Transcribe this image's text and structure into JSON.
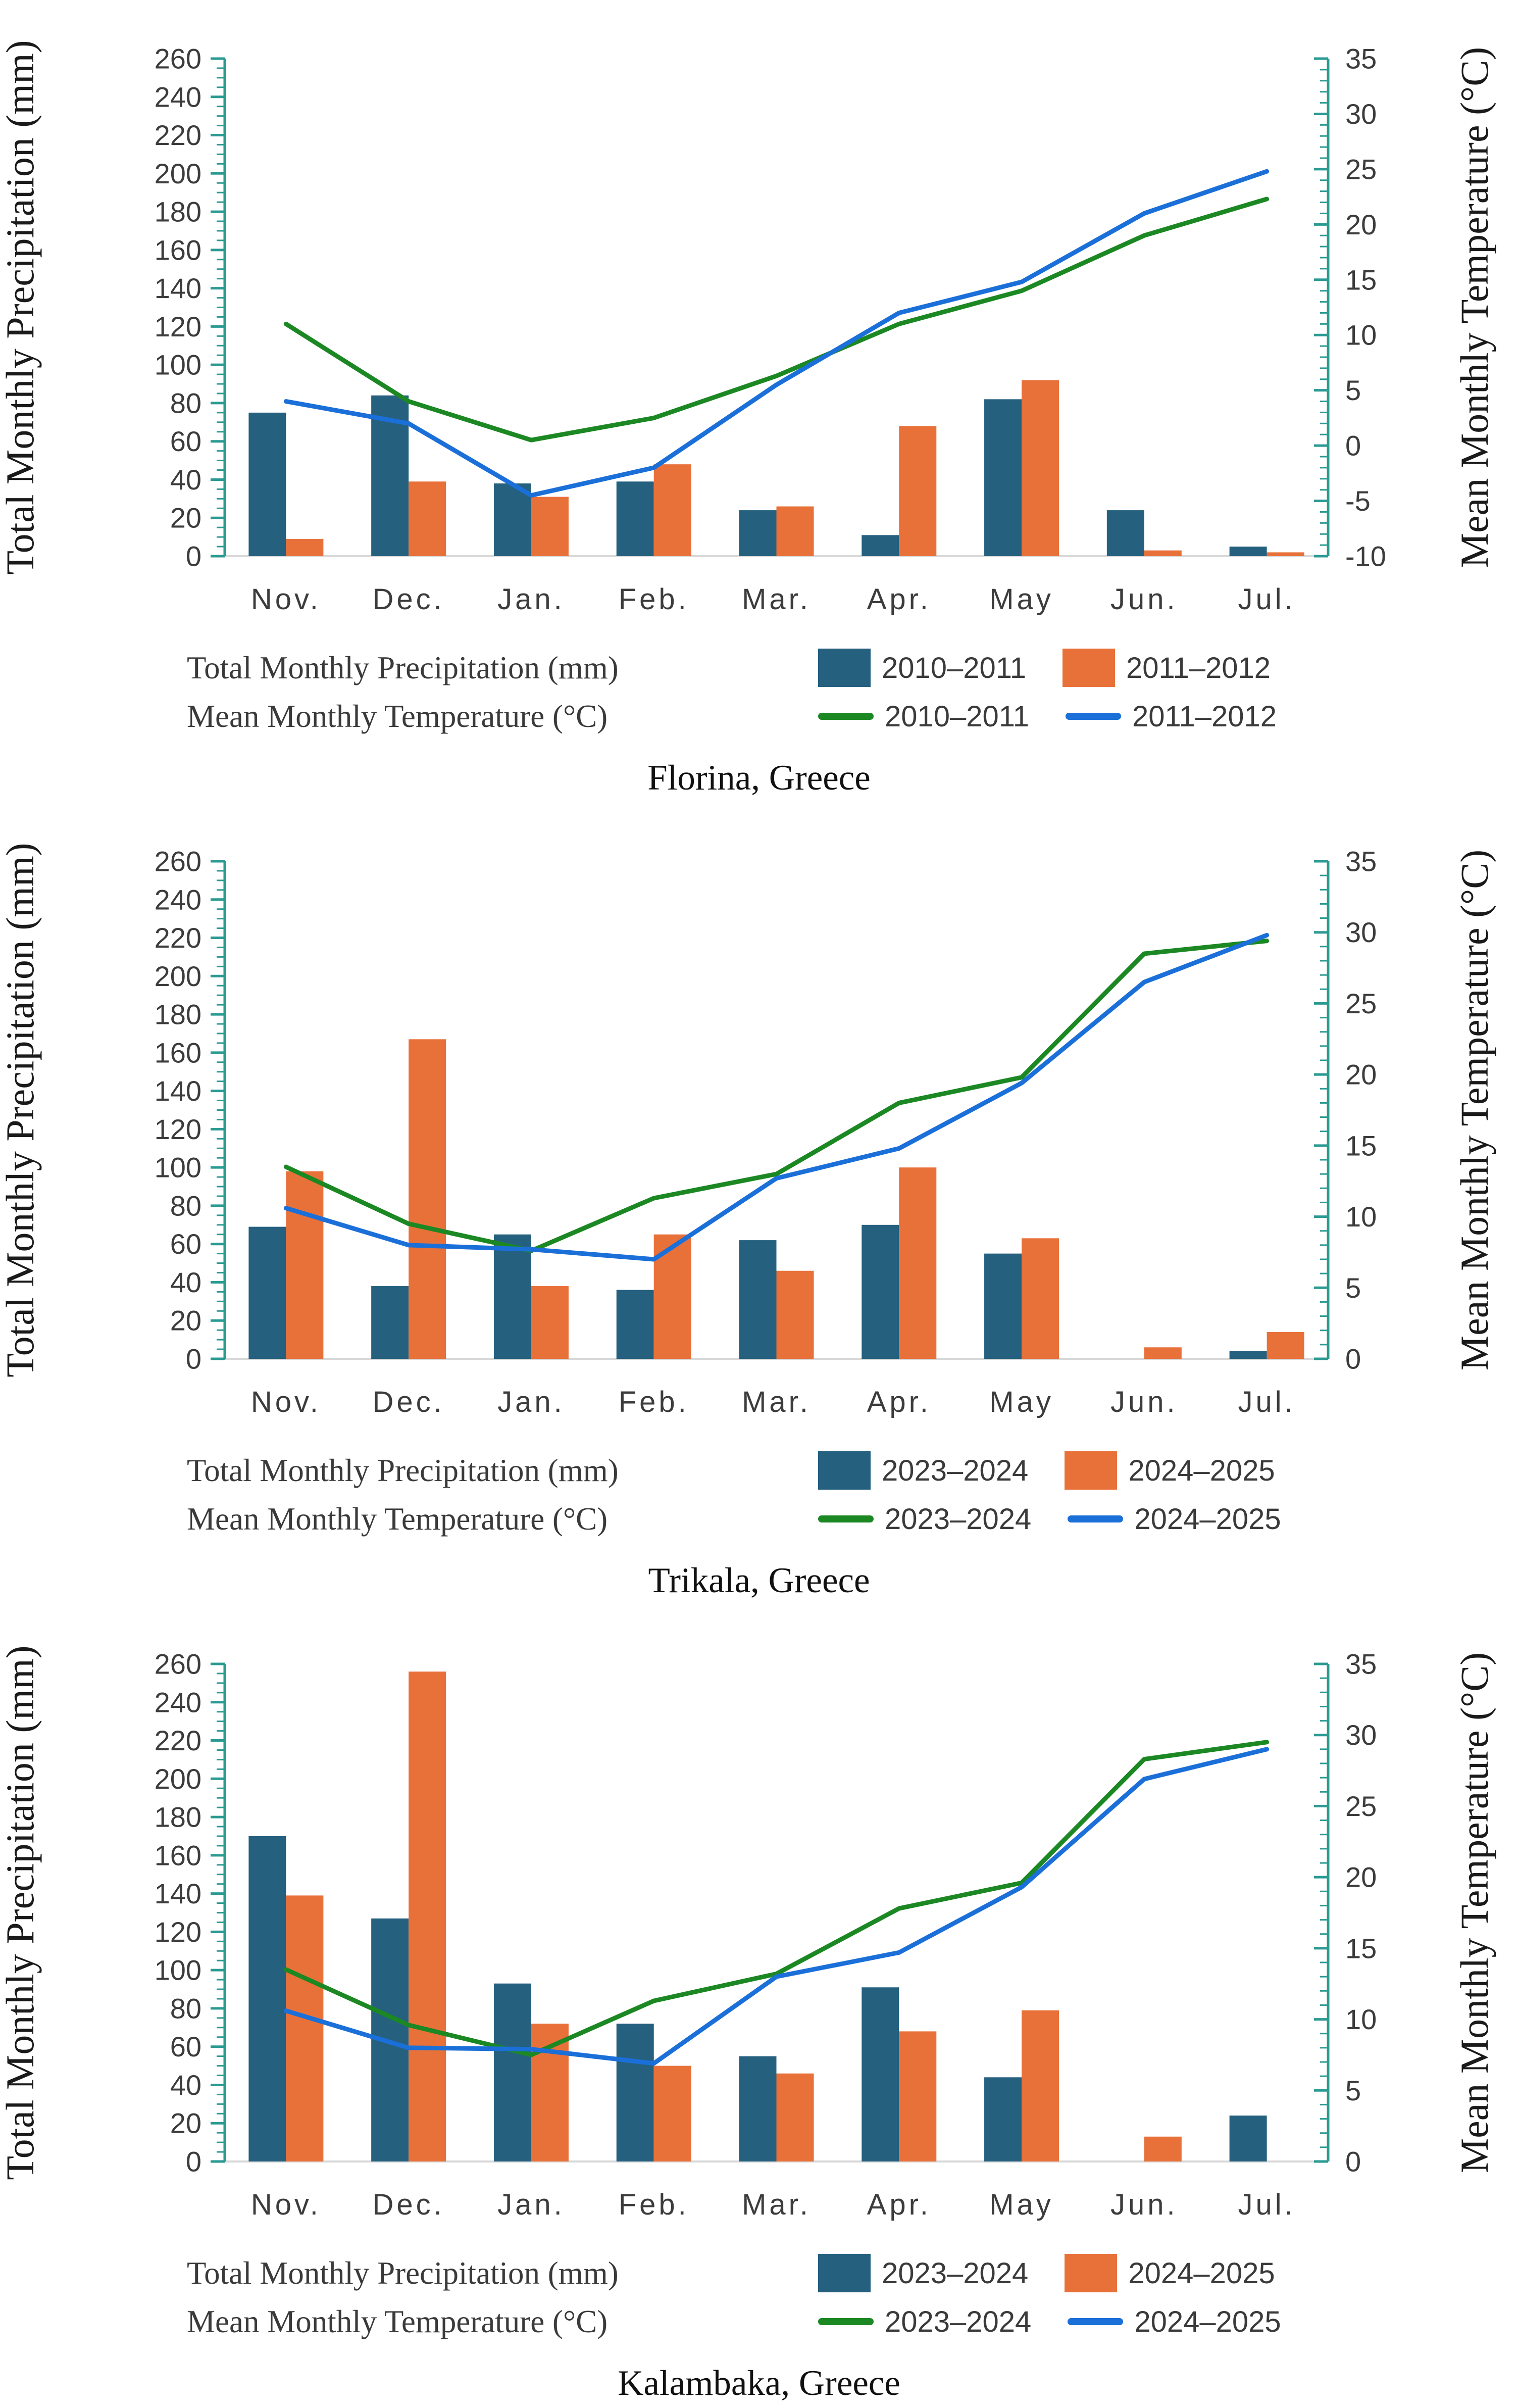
{
  "colors": {
    "bar_series1": "#25607F",
    "bar_series2": "#E8713A",
    "line_series1": "#1C8823",
    "line_series2": "#1B6FD8",
    "axis": "#2B9A92",
    "baseline": "#D8D8D8",
    "tick_text": "#3C3C3C"
  },
  "chart_data": [
    {
      "type": "bar+line",
      "title": "Florina, Greece",
      "categories": [
        "Nov.",
        "Dec.",
        "Jan.",
        "Feb.",
        "Mar.",
        "Apr.",
        "May",
        "Jun.",
        "Jul."
      ],
      "bar_axis": {
        "label": "Total Monthly Precipitation (mm)",
        "min": 0,
        "max": 260,
        "major_tick": 20,
        "minor_tick": 5
      },
      "line_axis": {
        "label": "Mean Monthly Temperature (°C)",
        "min": -10,
        "max": 35,
        "major_tick": 5,
        "minor_tick": 1
      },
      "legend": {
        "bar_group_label": "Total Monthly Precipitation  (mm)",
        "line_group_label": "Mean Monthly Temperature (°C)"
      },
      "bar_series": [
        {
          "name": "2010–2011",
          "values": [
            75,
            84,
            38,
            39,
            24,
            11,
            82,
            24,
            5
          ]
        },
        {
          "name": "2011–2012",
          "values": [
            9,
            39,
            31,
            48,
            26,
            68,
            92,
            3,
            2
          ]
        }
      ],
      "line_series": [
        {
          "name": "2010–2011",
          "values": [
            11,
            4,
            0.5,
            2.5,
            6.3,
            11,
            14,
            19,
            22.3
          ]
        },
        {
          "name": "2011–2012",
          "values": [
            4,
            2,
            -4.5,
            -2,
            5.5,
            12,
            14.8,
            21,
            24.8
          ]
        }
      ]
    },
    {
      "type": "bar+line",
      "title": "Trikala, Greece",
      "categories": [
        "Nov.",
        "Dec.",
        "Jan.",
        "Feb.",
        "Mar.",
        "Apr.",
        "May",
        "Jun.",
        "Jul."
      ],
      "bar_axis": {
        "label": "Total Monthly Precipitation (mm)",
        "min": 0,
        "max": 260,
        "major_tick": 20,
        "minor_tick": 5
      },
      "line_axis": {
        "label": "Mean Monthly Temperature (°C)",
        "min": 0,
        "max": 35,
        "major_tick": 5,
        "minor_tick": 1
      },
      "legend": {
        "bar_group_label": "Total Monthly Precipitation (mm)",
        "line_group_label": "Mean Monthly Temperature (°C)"
      },
      "bar_series": [
        {
          "name": "2023–2024",
          "values": [
            69,
            38,
            65,
            36,
            62,
            70,
            55,
            0,
            4
          ]
        },
        {
          "name": "2024–2025",
          "values": [
            98,
            167,
            38,
            65,
            46,
            100,
            63,
            6,
            14
          ]
        }
      ],
      "line_series": [
        {
          "name": "2023–2024",
          "values": [
            13.5,
            9.5,
            7.6,
            11.3,
            13,
            18,
            19.8,
            28.5,
            29.4
          ]
        },
        {
          "name": "2024–2025",
          "values": [
            10.6,
            8,
            7.7,
            7,
            12.7,
            14.8,
            19.4,
            26.5,
            29.8
          ]
        }
      ]
    },
    {
      "type": "bar+line",
      "title": "Kalambaka, Greece",
      "categories": [
        "Nov.",
        "Dec.",
        "Jan.",
        "Feb.",
        "Mar.",
        "Apr.",
        "May",
        "Jun.",
        "Jul."
      ],
      "bar_axis": {
        "label": "Total Monthly Precipitation (mm)",
        "min": 0,
        "max": 260,
        "major_tick": 20,
        "minor_tick": 5
      },
      "line_axis": {
        "label": "Mean Monthly Temperature (°C)",
        "min": 0,
        "max": 35,
        "major_tick": 5,
        "minor_tick": 1
      },
      "legend": {
        "bar_group_label": "Total Monthly Precipitation  (mm)",
        "line_group_label": "Mean Monthly Temperature (°C)"
      },
      "bar_series": [
        {
          "name": "2023–2024",
          "values": [
            170,
            127,
            93,
            72,
            55,
            91,
            44,
            0,
            24
          ]
        },
        {
          "name": "2024–2025",
          "values": [
            139,
            256,
            72,
            50,
            46,
            68,
            79,
            13,
            0
          ]
        }
      ],
      "line_series": [
        {
          "name": "2023–2024",
          "values": [
            13.5,
            9.6,
            7.5,
            11.3,
            13.2,
            17.8,
            19.6,
            28.3,
            29.5
          ]
        },
        {
          "name": "2024–2025",
          "values": [
            10.6,
            8,
            7.9,
            6.9,
            13,
            14.7,
            19.3,
            26.9,
            29
          ]
        }
      ]
    }
  ]
}
